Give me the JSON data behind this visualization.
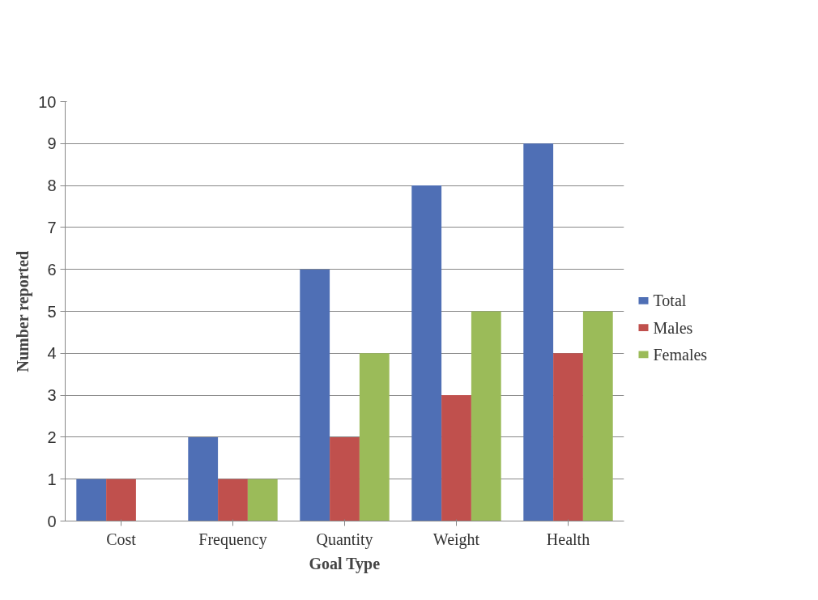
{
  "chart_data": {
    "type": "bar",
    "xlabel": "Goal Type",
    "ylabel": "Number reported",
    "categories": [
      "Cost",
      "Frequency",
      "Quantity",
      "Weight",
      "Health"
    ],
    "series": [
      {
        "name": "Total",
        "color": "#4f6fb5",
        "values": [
          1,
          2,
          6,
          8,
          9
        ]
      },
      {
        "name": "Males",
        "color": "#c0504d",
        "values": [
          1,
          1,
          2,
          3,
          4
        ]
      },
      {
        "name": "Females",
        "color": "#9bbb59",
        "values": [
          0,
          1,
          4,
          5,
          5
        ]
      }
    ],
    "ylim": [
      0,
      10
    ],
    "yticks": [
      0,
      1,
      2,
      3,
      4,
      5,
      6,
      7,
      8,
      9,
      10
    ],
    "grid": "y",
    "legend": "right"
  }
}
